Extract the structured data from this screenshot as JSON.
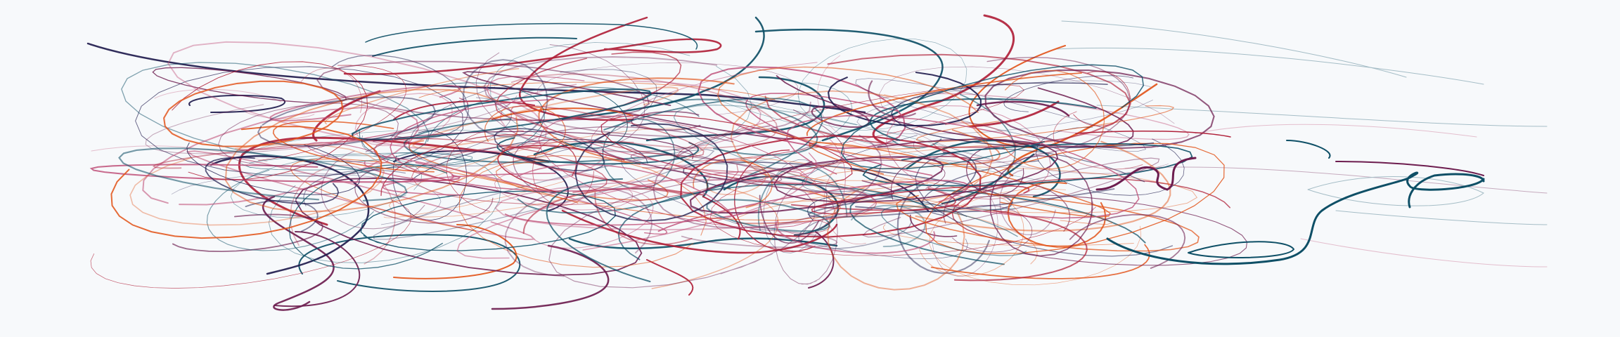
{
  "background": "#f7f9fb",
  "palette": {
    "navy": "#1f1b4d",
    "teal": "#0e4f66",
    "crimson": "#b0213a",
    "orange": "#e2551b",
    "plum": "#6d1d4f",
    "rose": "#c0527a"
  },
  "artwork": {
    "description_free": true,
    "stroke_families": [
      "navy",
      "teal",
      "crimson",
      "orange",
      "plum",
      "rose"
    ]
  }
}
